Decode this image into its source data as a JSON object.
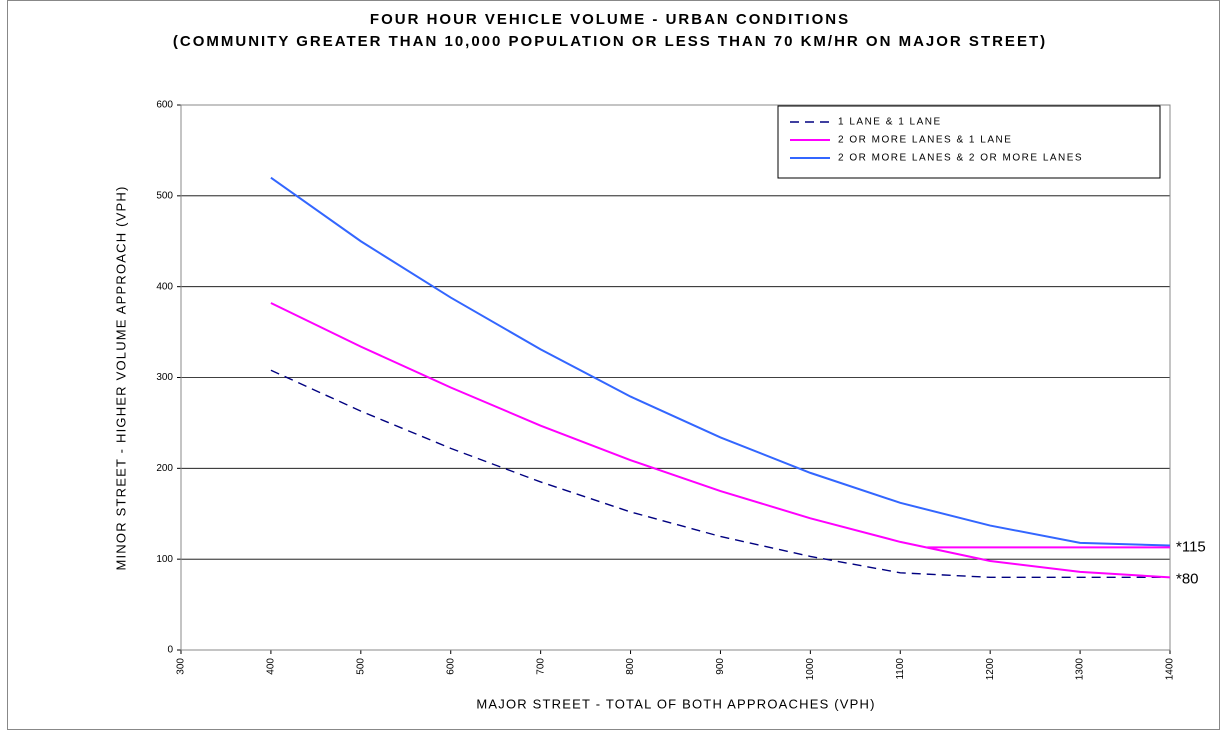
{
  "chart_data": {
    "type": "line",
    "title": "FOUR HOUR VEHICLE VOLUME - URBAN CONDITIONS",
    "subtitle": "(COMMUNITY GREATER THAN 10,000 POPULATION OR LESS THAN 70 KM/HR ON MAJOR STREET)",
    "xlabel": "MAJOR STREET - TOTAL OF BOTH APPROACHES (VPH)",
    "ylabel": "MINOR STREET - HIGHER VOLUME APPROACH (VPH)",
    "xlim": [
      300,
      1400
    ],
    "ylim": [
      0,
      600
    ],
    "xticks": [
      300,
      400,
      500,
      600,
      700,
      800,
      900,
      1000,
      1100,
      1200,
      1300,
      1400
    ],
    "yticks": [
      0,
      100,
      200,
      300,
      400,
      500,
      600
    ],
    "grid": true,
    "legend": "top-right",
    "series": [
      {
        "name": "1 LANE & 1 LANE",
        "color": "#000080",
        "dashed": true,
        "x": [
          400,
          500,
          600,
          700,
          800,
          900,
          1000,
          1100,
          1200,
          1300,
          1400
        ],
        "values": [
          308,
          263,
          222,
          185,
          152,
          125,
          103,
          85,
          80,
          80,
          80
        ]
      },
      {
        "name": "2 OR MORE LANES & 1 LANE",
        "color": "#ff00ff",
        "dashed": false,
        "x": [
          400,
          500,
          600,
          700,
          800,
          900,
          1000,
          1100,
          1200,
          1300,
          1400
        ],
        "values": [
          382,
          334,
          289,
          247,
          209,
          175,
          145,
          119,
          98,
          86,
          80
        ]
      },
      {
        "name": "2 OR MORE LANES & 2 OR MORE LANES",
        "color": "#3366ff",
        "dashed": false,
        "x": [
          400,
          500,
          600,
          700,
          800,
          900,
          1000,
          1100,
          1200,
          1300,
          1400
        ],
        "values": [
          520,
          450,
          388,
          331,
          279,
          234,
          195,
          162,
          137,
          118,
          115
        ]
      },
      {
        "color": "#ff00ff",
        "dashed": false,
        "x": [
          1130,
          1400
        ],
        "values": [
          113,
          113
        ]
      }
    ],
    "annotations": [
      {
        "text": "*115",
        "y": 115
      },
      {
        "text": "*80",
        "y": 80
      }
    ]
  }
}
